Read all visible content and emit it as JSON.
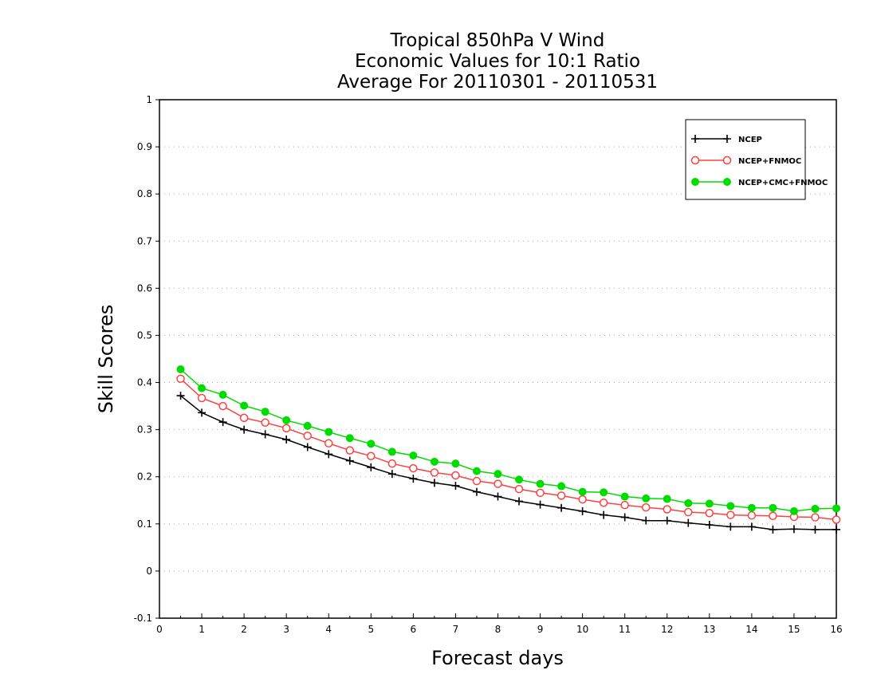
{
  "chart_data": {
    "type": "line",
    "title_lines": [
      "Tropical 850hPa V Wind",
      "Economic Values for 10:1 Ratio",
      "Average For 20110301 - 20110531"
    ],
    "xlabel": "Forecast days",
    "ylabel": "Skill Scores",
    "xlim": [
      0,
      16
    ],
    "ylim": [
      -0.1,
      1
    ],
    "x_ticks": [
      "0",
      "1",
      "2",
      "3",
      "4",
      "5",
      "6",
      "7",
      "8",
      "9",
      "10",
      "11",
      "12",
      "13",
      "14",
      "15",
      "16"
    ],
    "y_ticks": [
      "-0.1",
      "0",
      "0.1",
      "0.2",
      "0.3",
      "0.4",
      "0.5",
      "0.6",
      "0.7",
      "0.8",
      "0.9",
      "1"
    ],
    "grid": "horizontal dotted",
    "legend_position": "top-right",
    "x": [
      0.5,
      1,
      1.5,
      2,
      2.5,
      3,
      3.5,
      4,
      4.5,
      5,
      5.5,
      6,
      6.5,
      7,
      7.5,
      8,
      8.5,
      9,
      9.5,
      10,
      10.5,
      11,
      11.5,
      12,
      12.5,
      13,
      13.5,
      14,
      14.5,
      15,
      15.5,
      16
    ],
    "series": [
      {
        "name": "NCEP",
        "color": "#000000",
        "marker": "plus",
        "values": [
          0.372,
          0.336,
          0.316,
          0.3,
          0.29,
          0.279,
          0.263,
          0.248,
          0.234,
          0.22,
          0.206,
          0.196,
          0.187,
          0.181,
          0.168,
          0.158,
          0.148,
          0.141,
          0.134,
          0.127,
          0.119,
          0.114,
          0.107,
          0.107,
          0.102,
          0.098,
          0.094,
          0.094,
          0.088,
          0.089,
          0.088,
          0.088
        ]
      },
      {
        "name": "NCEP+FNMOC",
        "color": "#ff4040",
        "marker": "open-circle",
        "values": [
          0.408,
          0.367,
          0.35,
          0.325,
          0.315,
          0.303,
          0.287,
          0.271,
          0.256,
          0.244,
          0.228,
          0.218,
          0.209,
          0.203,
          0.191,
          0.185,
          0.174,
          0.166,
          0.16,
          0.152,
          0.145,
          0.14,
          0.135,
          0.131,
          0.125,
          0.123,
          0.119,
          0.118,
          0.117,
          0.115,
          0.114,
          0.109
        ]
      },
      {
        "name": "NCEP+CMC+FNMOC",
        "color": "#00dc00",
        "marker": "filled-circle",
        "values": [
          0.428,
          0.388,
          0.374,
          0.351,
          0.338,
          0.32,
          0.308,
          0.295,
          0.282,
          0.27,
          0.253,
          0.245,
          0.232,
          0.228,
          0.212,
          0.206,
          0.194,
          0.185,
          0.18,
          0.168,
          0.167,
          0.158,
          0.154,
          0.153,
          0.144,
          0.143,
          0.138,
          0.134,
          0.134,
          0.127,
          0.132,
          0.133
        ]
      }
    ]
  }
}
